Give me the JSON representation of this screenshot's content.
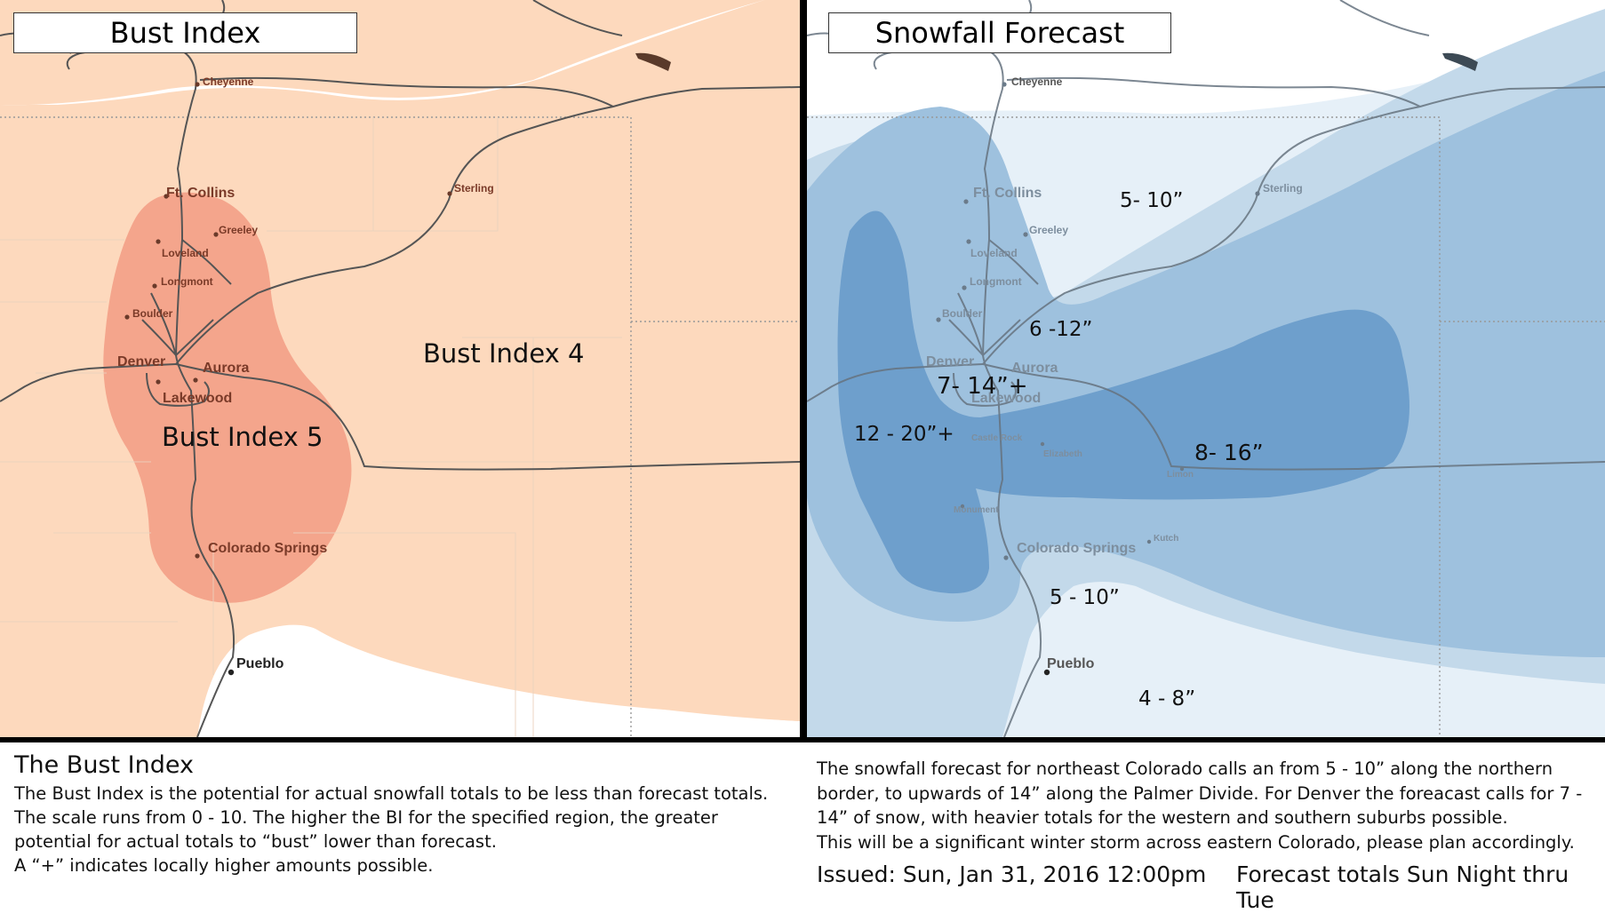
{
  "left_map": {
    "title": "Bust Index",
    "zone_labels": {
      "outer": "Bust Index 4",
      "core": "Bust Index 5"
    }
  },
  "right_map": {
    "title": "Snowfall Forecast",
    "amount_labels": {
      "north": "5- 10”",
      "mid": "6 -12”",
      "denver": "7- 14”+",
      "west": "12 - 20”+",
      "east": "8- 16”",
      "south": "5 - 10”",
      "pueblo": "4 - 8”"
    },
    "extra_towns": {
      "castle_rock": "Castle Rock",
      "elizabeth": "Elizabeth",
      "limon": "Limon",
      "monument": "Monument",
      "kutch": "Kutch"
    }
  },
  "cities": {
    "cheyenne": "Cheyenne",
    "ft_collins": "Ft. Collins",
    "greeley": "Greeley",
    "loveland": "Loveland",
    "longmont": "Longmont",
    "boulder": "Boulder",
    "denver": "Denver",
    "aurora": "Aurora",
    "lakewood": "Lakewood",
    "sterling": "Sterling",
    "colorado_springs": "Colorado Springs",
    "pueblo": "Pueblo"
  },
  "bust_info": {
    "heading": "The Bust Index",
    "description": "The Bust Index is the potential for actual snowfall totals to be less than forecast totals. The scale runs from 0 - 10. The higher the BI for the specified region, the greater potential for actual totals to “bust” lower than forecast.",
    "note": "A “+” indicates locally higher amounts possible."
  },
  "snow_info": {
    "description": "The snowfall forecast for northeast Colorado calls an from 5 - 10” along the northern border, to upwards of 14” along the Palmer Divide. For Denver the foreacast calls for 7 - 14” of snow, with heavier totals for the western and southern suburbs possible.",
    "note": "This will be a significant winter storm across eastern Colorado, please plan accordingly.",
    "issued": "Issued: Sun, Jan 31, 2016 12:00pm",
    "period": "Forecast totals Sun Night thru Tue"
  },
  "colors": {
    "bust_low": "#fdd9bd",
    "bust_high": "#f4a58c",
    "snow_lightest": "#e6f0f8",
    "snow_light": "#c3d9ea",
    "snow_mid": "#9ec1de",
    "snow_dark": "#6e9fcc"
  }
}
